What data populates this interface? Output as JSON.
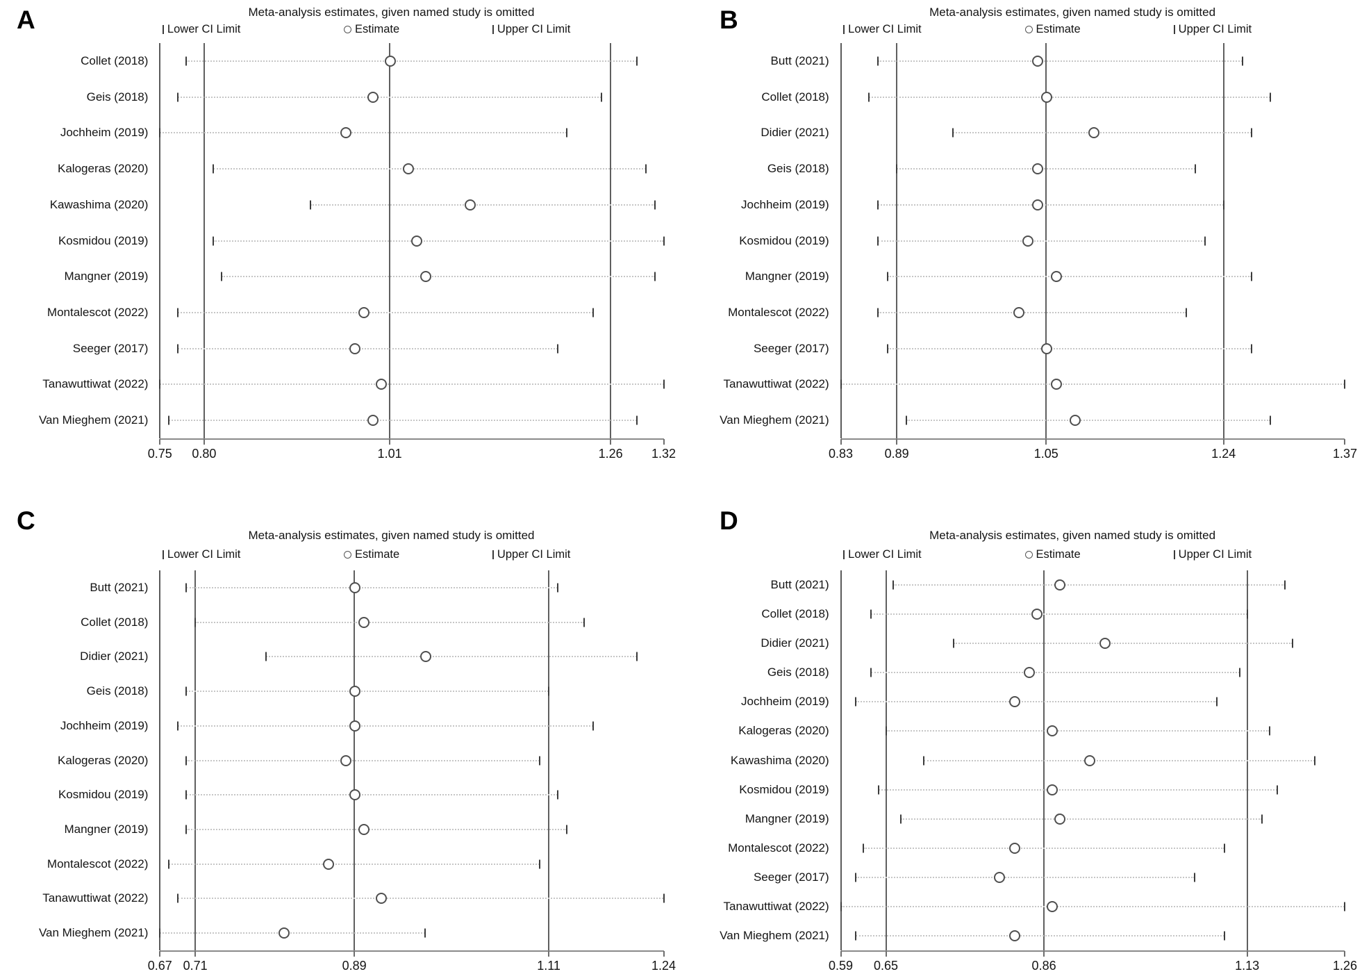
{
  "chart_data": [
    {
      "panel": "A",
      "type": "scatter",
      "subtype": "forest-leave-one-out-sensitivity",
      "title": "Meta-analysis estimates, given named study is omitted",
      "legend_entries": [
        "Lower CI Limit",
        "Estimate",
        "Upper CI Limit"
      ],
      "x_axis": {
        "min": 0.75,
        "max": 1.32,
        "ticks": [
          "0.75",
          "0.80",
          "1.01",
          "1.26",
          "1.32"
        ],
        "ref_lines": [
          0.8,
          1.01,
          1.26
        ],
        "grid": false
      },
      "studies": [
        {
          "label": "Collet (2018)",
          "lower": 0.78,
          "estimate": 1.01,
          "upper": 1.29
        },
        {
          "label": "Geis (2018)",
          "lower": 0.77,
          "estimate": 0.99,
          "upper": 1.25
        },
        {
          "label": "Jochheim (2019)",
          "lower": 0.75,
          "estimate": 0.96,
          "upper": 1.21
        },
        {
          "label": "Kalogeras (2020)",
          "lower": 0.81,
          "estimate": 1.03,
          "upper": 1.3
        },
        {
          "label": "Kawashima (2020)",
          "lower": 0.92,
          "estimate": 1.1,
          "upper": 1.31
        },
        {
          "label": "Kosmidou (2019)",
          "lower": 0.81,
          "estimate": 1.04,
          "upper": 1.32
        },
        {
          "label": "Mangner (2019)",
          "lower": 0.82,
          "estimate": 1.05,
          "upper": 1.31
        },
        {
          "label": "Montalescot (2022)",
          "lower": 0.77,
          "estimate": 0.98,
          "upper": 1.24
        },
        {
          "label": "Seeger (2017)",
          "lower": 0.77,
          "estimate": 0.97,
          "upper": 1.2
        },
        {
          "label": "Tanawuttiwat (2022)",
          "lower": 0.75,
          "estimate": 1.0,
          "upper": 1.32
        },
        {
          "label": "Van Mieghem (2021)",
          "lower": 0.76,
          "estimate": 0.99,
          "upper": 1.29
        }
      ]
    },
    {
      "panel": "B",
      "type": "scatter",
      "subtype": "forest-leave-one-out-sensitivity",
      "title": "Meta-analysis estimates, given named study is omitted",
      "legend_entries": [
        "Lower CI Limit",
        "Estimate",
        "Upper CI Limit"
      ],
      "x_axis": {
        "min": 0.83,
        "max": 1.37,
        "ticks": [
          "0.83",
          "0.89",
          "1.05",
          "1.24",
          "1.37"
        ],
        "ref_lines": [
          0.89,
          1.05,
          1.24
        ],
        "grid": false
      },
      "studies": [
        {
          "label": "Butt (2021)",
          "lower": 0.87,
          "estimate": 1.04,
          "upper": 1.26
        },
        {
          "label": "Collet (2018)",
          "lower": 0.86,
          "estimate": 1.05,
          "upper": 1.29
        },
        {
          "label": "Didier (2021)",
          "lower": 0.95,
          "estimate": 1.1,
          "upper": 1.27
        },
        {
          "label": "Geis (2018)",
          "lower": 0.89,
          "estimate": 1.04,
          "upper": 1.21
        },
        {
          "label": "Jochheim (2019)",
          "lower": 0.87,
          "estimate": 1.04,
          "upper": 1.24
        },
        {
          "label": "Kosmidou (2019)",
          "lower": 0.87,
          "estimate": 1.03,
          "upper": 1.22
        },
        {
          "label": "Mangner (2019)",
          "lower": 0.88,
          "estimate": 1.06,
          "upper": 1.27
        },
        {
          "label": "Montalescot (2022)",
          "lower": 0.87,
          "estimate": 1.02,
          "upper": 1.2
        },
        {
          "label": "Seeger (2017)",
          "lower": 0.88,
          "estimate": 1.05,
          "upper": 1.27
        },
        {
          "label": "Tanawuttiwat (2022)",
          "lower": 0.83,
          "estimate": 1.06,
          "upper": 1.37
        },
        {
          "label": "Van Mieghem (2021)",
          "lower": 0.9,
          "estimate": 1.08,
          "upper": 1.29
        }
      ]
    },
    {
      "panel": "C",
      "type": "scatter",
      "subtype": "forest-leave-one-out-sensitivity",
      "title": "Meta-analysis estimates, given named study is omitted",
      "legend_entries": [
        "Lower CI Limit",
        "Estimate",
        "Upper CI Limit"
      ],
      "x_axis": {
        "min": 0.67,
        "max": 1.24,
        "ticks": [
          "0.67",
          "0.71",
          "0.89",
          "1.11",
          "1.24"
        ],
        "ref_lines": [
          0.71,
          0.89,
          1.11
        ],
        "grid": false
      },
      "studies": [
        {
          "label": "Butt (2021)",
          "lower": 0.7,
          "estimate": 0.89,
          "upper": 1.12
        },
        {
          "label": "Collet (2018)",
          "lower": 0.71,
          "estimate": 0.9,
          "upper": 1.15
        },
        {
          "label": "Didier (2021)",
          "lower": 0.79,
          "estimate": 0.97,
          "upper": 1.21
        },
        {
          "label": "Geis (2018)",
          "lower": 0.7,
          "estimate": 0.89,
          "upper": 1.11
        },
        {
          "label": "Jochheim (2019)",
          "lower": 0.69,
          "estimate": 0.89,
          "upper": 1.16
        },
        {
          "label": "Kalogeras (2020)",
          "lower": 0.7,
          "estimate": 0.88,
          "upper": 1.1
        },
        {
          "label": "Kosmidou (2019)",
          "lower": 0.7,
          "estimate": 0.89,
          "upper": 1.12
        },
        {
          "label": "Mangner (2019)",
          "lower": 0.7,
          "estimate": 0.9,
          "upper": 1.13
        },
        {
          "label": "Montalescot (2022)",
          "lower": 0.68,
          "estimate": 0.86,
          "upper": 1.1
        },
        {
          "label": "Tanawuttiwat (2022)",
          "lower": 0.69,
          "estimate": 0.92,
          "upper": 1.24
        },
        {
          "label": "Van Mieghem (2021)",
          "lower": 0.67,
          "estimate": 0.81,
          "upper": 0.97
        }
      ]
    },
    {
      "panel": "D",
      "type": "scatter",
      "subtype": "forest-leave-one-out-sensitivity",
      "title": "Meta-analysis estimates, given named study is omitted",
      "legend_entries": [
        "Lower CI Limit",
        "Estimate",
        "Upper CI Limit"
      ],
      "x_axis": {
        "min": 0.59,
        "max": 1.26,
        "ticks": [
          "0.59",
          "0.65",
          "0.86",
          "1.13",
          "1.26"
        ],
        "ref_lines": [
          0.65,
          0.86,
          1.13
        ],
        "grid": false
      },
      "studies": [
        {
          "label": "Butt (2021)",
          "lower": 0.66,
          "estimate": 0.88,
          "upper": 1.18
        },
        {
          "label": "Collet (2018)",
          "lower": 0.63,
          "estimate": 0.85,
          "upper": 1.13
        },
        {
          "label": "Didier (2021)",
          "lower": 0.74,
          "estimate": 0.94,
          "upper": 1.19
        },
        {
          "label": "Geis (2018)",
          "lower": 0.63,
          "estimate": 0.84,
          "upper": 1.12
        },
        {
          "label": "Jochheim (2019)",
          "lower": 0.61,
          "estimate": 0.82,
          "upper": 1.09
        },
        {
          "label": "Kalogeras (2020)",
          "lower": 0.65,
          "estimate": 0.87,
          "upper": 1.16
        },
        {
          "label": "Kawashima (2020)",
          "lower": 0.7,
          "estimate": 0.92,
          "upper": 1.22
        },
        {
          "label": "Kosmidou (2019)",
          "lower": 0.64,
          "estimate": 0.87,
          "upper": 1.17
        },
        {
          "label": "Mangner (2019)",
          "lower": 0.67,
          "estimate": 0.88,
          "upper": 1.15
        },
        {
          "label": "Montalescot (2022)",
          "lower": 0.62,
          "estimate": 0.82,
          "upper": 1.1
        },
        {
          "label": "Seeger (2017)",
          "lower": 0.61,
          "estimate": 0.8,
          "upper": 1.06
        },
        {
          "label": "Tanawuttiwat (2022)",
          "lower": 0.59,
          "estimate": 0.87,
          "upper": 1.26
        },
        {
          "label": "Van Mieghem (2021)",
          "lower": 0.61,
          "estimate": 0.82,
          "upper": 1.1
        }
      ]
    }
  ]
}
